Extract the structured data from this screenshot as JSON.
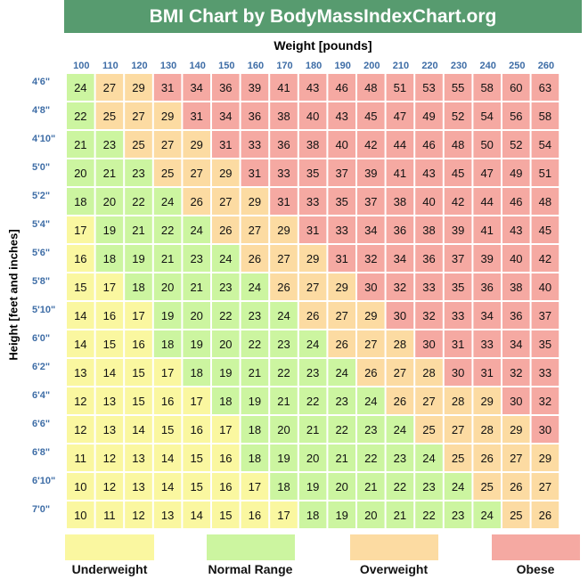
{
  "chart_data": {
    "type": "heatmap",
    "title": "BMI Chart by BodyMassIndexChart.org",
    "xlabel": "Weight [pounds]",
    "ylabel": "Height [feet and inches]",
    "weights": [
      "100",
      "110",
      "120",
      "130",
      "140",
      "150",
      "160",
      "170",
      "180",
      "190",
      "200",
      "210",
      "220",
      "230",
      "240",
      "250",
      "260"
    ],
    "heights": [
      "4'6\"",
      "4'8\"",
      "4'10\"",
      "5'0\"",
      "5'2\"",
      "5'4\"",
      "5'6\"",
      "5'8\"",
      "5'10\"",
      "6'0\"",
      "6'2\"",
      "6'4\"",
      "6'6\"",
      "6'8\"",
      "6'10\"",
      "7'0\""
    ],
    "values": [
      [
        24,
        27,
        29,
        31,
        34,
        36,
        39,
        41,
        43,
        46,
        48,
        51,
        53,
        55,
        58,
        60,
        63
      ],
      [
        22,
        25,
        27,
        29,
        31,
        34,
        36,
        38,
        40,
        43,
        45,
        47,
        49,
        52,
        54,
        56,
        58
      ],
      [
        21,
        23,
        25,
        27,
        29,
        31,
        33,
        36,
        38,
        40,
        42,
        44,
        46,
        48,
        50,
        52,
        54
      ],
      [
        20,
        21,
        23,
        25,
        27,
        29,
        31,
        33,
        35,
        37,
        39,
        41,
        43,
        45,
        47,
        49,
        51
      ],
      [
        18,
        20,
        22,
        24,
        26,
        27,
        29,
        31,
        33,
        35,
        37,
        38,
        40,
        42,
        44,
        46,
        48
      ],
      [
        17,
        19,
        21,
        22,
        24,
        26,
        27,
        29,
        31,
        33,
        34,
        36,
        38,
        39,
        41,
        43,
        45
      ],
      [
        16,
        18,
        19,
        21,
        23,
        24,
        26,
        27,
        29,
        31,
        32,
        34,
        36,
        37,
        39,
        40,
        42
      ],
      [
        15,
        17,
        18,
        20,
        21,
        23,
        24,
        26,
        27,
        29,
        30,
        32,
        33,
        35,
        36,
        38,
        40
      ],
      [
        14,
        16,
        17,
        19,
        20,
        22,
        23,
        24,
        26,
        27,
        29,
        30,
        32,
        33,
        34,
        36,
        37
      ],
      [
        14,
        15,
        16,
        18,
        19,
        20,
        22,
        23,
        24,
        26,
        27,
        28,
        30,
        31,
        33,
        34,
        35
      ],
      [
        13,
        14,
        15,
        17,
        18,
        19,
        21,
        22,
        23,
        24,
        26,
        27,
        28,
        30,
        31,
        32,
        33
      ],
      [
        12,
        13,
        15,
        16,
        17,
        18,
        19,
        21,
        22,
        23,
        24,
        26,
        27,
        28,
        29,
        30,
        32
      ],
      [
        12,
        13,
        14,
        15,
        16,
        17,
        18,
        20,
        21,
        22,
        23,
        24,
        25,
        27,
        28,
        29,
        30
      ],
      [
        11,
        12,
        13,
        14,
        15,
        16,
        18,
        19,
        20,
        21,
        22,
        23,
        24,
        25,
        26,
        27,
        29
      ],
      [
        10,
        12,
        13,
        14,
        15,
        16,
        17,
        18,
        19,
        20,
        21,
        22,
        23,
        24,
        25,
        26,
        27
      ],
      [
        10,
        11,
        12,
        13,
        14,
        15,
        16,
        17,
        18,
        19,
        20,
        21,
        22,
        23,
        24,
        25,
        26
      ]
    ],
    "categories": [
      {
        "label": "Underweight",
        "min": 0,
        "max": 18,
        "color": "#faf7a0"
      },
      {
        "label": "Normal Range",
        "min": 18,
        "max": 25,
        "color": "#ccf5a0"
      },
      {
        "label": "Overweight",
        "min": 25,
        "max": 30,
        "color": "#fcdba2"
      },
      {
        "label": "Obese",
        "min": 30,
        "max": 100,
        "color": "#f5a9a2"
      }
    ]
  }
}
